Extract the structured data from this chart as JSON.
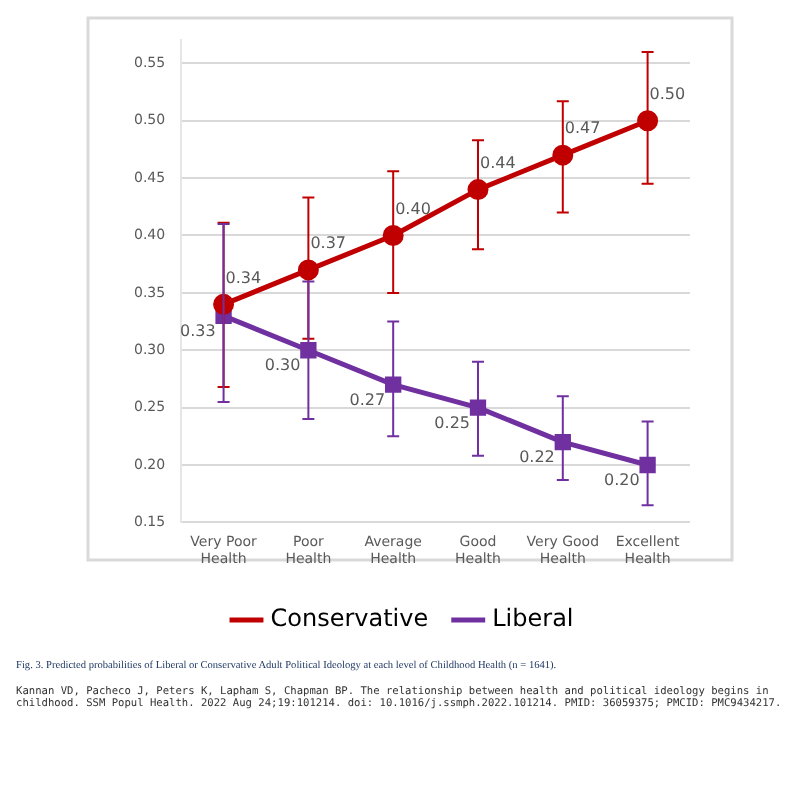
{
  "chart_data": {
    "type": "line",
    "categories": [
      "Very Poor Health",
      "Poor Health",
      "Average Health",
      "Good Health",
      "Very Good Health",
      "Excellent Health"
    ],
    "series": [
      {
        "name": "Conservative",
        "color": "#c00000",
        "marker": "circle",
        "values": [
          0.34,
          0.37,
          0.4,
          0.44,
          0.47,
          0.5
        ],
        "value_labels": [
          "0.34",
          "0.37",
          "0.40",
          "0.44",
          "0.47",
          "0.50"
        ],
        "errors": [
          [
            0.268,
            0.411
          ],
          [
            0.31,
            0.433
          ],
          [
            0.35,
            0.456
          ],
          [
            0.388,
            0.483
          ],
          [
            0.42,
            0.517
          ],
          [
            0.445,
            0.56
          ]
        ]
      },
      {
        "name": "Liberal",
        "color": "#7030a0",
        "marker": "square",
        "values": [
          0.33,
          0.3,
          0.27,
          0.25,
          0.22,
          0.2
        ],
        "value_labels": [
          "0.33",
          "0.30",
          "0.27",
          "0.25",
          "0.22",
          "0.20"
        ],
        "errors": [
          [
            0.255,
            0.41
          ],
          [
            0.24,
            0.36
          ],
          [
            0.225,
            0.325
          ],
          [
            0.208,
            0.29
          ],
          [
            0.187,
            0.26
          ],
          [
            0.165,
            0.238
          ]
        ]
      }
    ],
    "ylim": [
      0.15,
      0.57
    ],
    "yticks": [
      {
        "value": 0.15,
        "label": "0.15"
      },
      {
        "value": 0.2,
        "label": "0.20"
      },
      {
        "value": 0.25,
        "label": "0.25"
      },
      {
        "value": 0.3,
        "label": "0.30"
      },
      {
        "value": 0.35,
        "label": "0.35"
      },
      {
        "value": 0.4,
        "label": "0.40"
      },
      {
        "value": 0.45,
        "label": "0.45"
      },
      {
        "value": 0.5,
        "label": "0.50"
      },
      {
        "value": 0.55,
        "label": "0.55"
      }
    ],
    "grid": "y",
    "legend": "bottom",
    "line_style": "solid",
    "annotations": [
      "Fig. 3. Predicted probabilities of Liberal or Conservative Adult Political Ideology at each level of Childhood Health (n = 1641).",
      "Kannan VD, Pacheco J, Peters K, Lapham S, Chapman BP. The relationship between health and political ideology begins in childhood. SSM Popul Health. 2022 Aug 24;19:101214. doi: 10.1016/j.ssmph.2022.101214. PMID: 36059375; PMCID: PMC9434217."
    ]
  }
}
